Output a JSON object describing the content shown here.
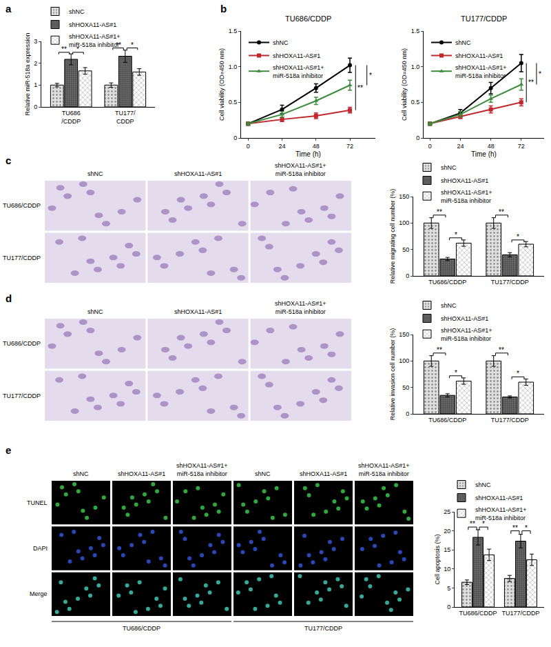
{
  "panel_labels": [
    "a",
    "b",
    "c",
    "d",
    "e"
  ],
  "chart_data": [
    {
      "type": "bar",
      "ylabel": "Relative miR-518a expression",
      "categories": [
        "TU686\n/CDDP",
        "TU177/\nCDDP"
      ],
      "series": [
        {
          "name": "shNC",
          "color": "#e0e0e0",
          "values": [
            1.0,
            1.0
          ],
          "errors": [
            0.08,
            0.1
          ]
        },
        {
          "name": "shHOXA11-AS#1",
          "color": "#6e6e6e",
          "values": [
            2.18,
            2.32
          ],
          "errors": [
            0.25,
            0.28
          ]
        },
        {
          "name": "shHOXA11-AS#1+\nmiR-518a inhibitor",
          "color": "#ffffff",
          "values": [
            1.65,
            1.6
          ],
          "errors": [
            0.15,
            0.15
          ]
        }
      ],
      "ylim": [
        0,
        3
      ],
      "yticks": [
        0,
        1,
        2,
        3
      ],
      "grid": false,
      "legend": "upper left",
      "significance": [
        {
          "group": 0,
          "from": 0,
          "to": 1,
          "y": 2.5,
          "label": "**"
        },
        {
          "group": 0,
          "from": 1,
          "to": 2,
          "y": 2.5,
          "label": "*"
        },
        {
          "group": 1,
          "from": 0,
          "to": 1,
          "y": 2.7,
          "label": "**"
        },
        {
          "group": 1,
          "from": 1,
          "to": 2,
          "y": 2.7,
          "label": "*"
        }
      ]
    },
    {
      "type": "line",
      "title": "TU686/CDDP",
      "xlabel": "Time (h)",
      "ylabel": "Cell viability (OD=450 nm)",
      "x": [
        0,
        24,
        48,
        72
      ],
      "series": [
        {
          "name": "shNC",
          "color": "#000000",
          "marker": "circle",
          "values": [
            0.2,
            0.4,
            0.7,
            1.02
          ],
          "errors": [
            0.02,
            0.06,
            0.06,
            0.1
          ]
        },
        {
          "name": "shHOXA11-AS#1",
          "color": "#c0282d",
          "marker": "square",
          "values": [
            0.2,
            0.26,
            0.31,
            0.39
          ],
          "errors": [
            0.02,
            0.03,
            0.04,
            0.04
          ]
        },
        {
          "name": "shHOXA11-AS#1+\nmiR-518a inhibitor",
          "color": "#3d8b3d",
          "marker": "triangle-up",
          "values": [
            0.2,
            0.33,
            0.52,
            0.74
          ],
          "errors": [
            0.02,
            0.04,
            0.05,
            0.07
          ]
        }
      ],
      "xlim": [
        -5,
        90
      ],
      "xticks": [
        0,
        24,
        48,
        72
      ],
      "ylim": [
        0,
        1.5
      ],
      "yticks": [
        0,
        0.5,
        {
          "value": 1,
          "label": "1.0"
        },
        1.5
      ],
      "grid": false,
      "legend": "upper left",
      "significance": [
        {
          "from": 0,
          "to": 1,
          "x": 76,
          "label": "**"
        },
        {
          "from": 0,
          "to": 2,
          "x": 84,
          "label": "*"
        }
      ]
    },
    {
      "type": "line",
      "title": "TU177/CDDP",
      "xlabel": "Time (h)",
      "ylabel": "Cell viability (OD=450 nm)",
      "x": [
        0,
        24,
        48,
        72
      ],
      "series": [
        {
          "name": "shNC",
          "color": "#000000",
          "marker": "circle",
          "values": [
            0.2,
            0.35,
            0.7,
            1.05
          ],
          "errors": [
            0.02,
            0.05,
            0.08,
            0.12
          ]
        },
        {
          "name": "shHOXA11-AS#1",
          "color": "#c0282d",
          "marker": "square",
          "values": [
            0.2,
            0.3,
            0.4,
            0.5
          ],
          "errors": [
            0.02,
            0.03,
            0.05,
            0.05
          ]
        },
        {
          "name": "shHOXA11-AS#1+\nmiR-518a inhibitor",
          "color": "#3d8b3d",
          "marker": "triangle-up",
          "values": [
            0.2,
            0.33,
            0.55,
            0.75
          ],
          "errors": [
            0.02,
            0.04,
            0.05,
            0.08
          ]
        }
      ],
      "xlim": [
        -5,
        90
      ],
      "xticks": [
        0,
        24,
        48,
        72
      ],
      "ylim": [
        0,
        1.5
      ],
      "yticks": [
        0,
        0.5,
        {
          "value": 1,
          "label": "1.0"
        },
        1.5
      ],
      "grid": false,
      "legend": "upper left",
      "significance": [
        {
          "from": 0,
          "to": 1,
          "x": 76,
          "label": "**"
        },
        {
          "from": 0,
          "to": 2,
          "x": 84,
          "label": "*"
        }
      ]
    },
    {
      "type": "bar",
      "ylabel": "Relative migrating cell number (%)",
      "categories": [
        "TU686/CDDP",
        "TU177/CDDP"
      ],
      "series": [
        {
          "name": "shNC",
          "color": "#e0e0e0",
          "values": [
            100,
            100
          ],
          "errors": [
            10,
            10
          ]
        },
        {
          "name": "shHOXA11-AS#1",
          "color": "#6e6e6e",
          "values": [
            32,
            40
          ],
          "errors": [
            3,
            4
          ]
        },
        {
          "name": "shHOXA11-AS#1+\nmiR-518a inhibitor",
          "color": "#ffffff",
          "values": [
            62,
            60
          ],
          "errors": [
            6,
            5
          ]
        }
      ],
      "ylim": [
        0,
        150
      ],
      "yticks": [
        0,
        50,
        100,
        150
      ],
      "grid": false,
      "legend": "upper left",
      "significance": [
        {
          "group": 0,
          "from": 0,
          "to": 1,
          "y": 115,
          "label": "**"
        },
        {
          "group": 0,
          "from": 1,
          "to": 2,
          "y": 72,
          "label": "*"
        },
        {
          "group": 1,
          "from": 0,
          "to": 1,
          "y": 115,
          "label": "**"
        },
        {
          "group": 1,
          "from": 1,
          "to": 2,
          "y": 68,
          "label": "*"
        }
      ]
    },
    {
      "type": "bar",
      "ylabel": "Relative invasion cell number (%)",
      "categories": [
        "TU686/CDDP",
        "TU177/CDDP"
      ],
      "series": [
        {
          "name": "shNC",
          "color": "#e0e0e0",
          "values": [
            100,
            100
          ],
          "errors": [
            10,
            10
          ]
        },
        {
          "name": "shHOXA11-AS#1",
          "color": "#6e6e6e",
          "values": [
            35,
            32
          ],
          "errors": [
            3,
            2
          ]
        },
        {
          "name": "shHOXA11-AS#1+\nmiR-518a inhibitor",
          "color": "#ffffff",
          "values": [
            62,
            60
          ],
          "errors": [
            6,
            6
          ]
        }
      ],
      "ylim": [
        0,
        150
      ],
      "yticks": [
        0,
        50,
        100,
        150
      ],
      "grid": false,
      "legend": "upper left",
      "significance": [
        {
          "group": 0,
          "from": 0,
          "to": 1,
          "y": 115,
          "label": "**"
        },
        {
          "group": 0,
          "from": 1,
          "to": 2,
          "y": 72,
          "label": "*"
        },
        {
          "group": 1,
          "from": 0,
          "to": 1,
          "y": 115,
          "label": "**"
        },
        {
          "group": 1,
          "from": 1,
          "to": 2,
          "y": 70,
          "label": "*"
        }
      ]
    },
    {
      "type": "bar",
      "ylabel": "Cell apoptosis (%)",
      "categories": [
        "TU686/CDDP",
        "TU177/CDDP"
      ],
      "series": [
        {
          "name": "shNC",
          "color": "#e0e0e0",
          "values": [
            6.5,
            7.5
          ],
          "errors": [
            0.6,
            0.8
          ]
        },
        {
          "name": "shHOXA11-AS#1",
          "color": "#6e6e6e",
          "values": [
            18.3,
            17.3
          ],
          "errors": [
            2,
            1.8
          ]
        },
        {
          "name": "shHOXA11-AS#1+\nmiR-518a inhibitor",
          "color": "#ffffff",
          "values": [
            13.7,
            12.4
          ],
          "errors": [
            1.5,
            1.5
          ]
        }
      ],
      "ylim": [
        0,
        25
      ],
      "yticks": [
        0,
        5,
        10,
        15,
        20,
        25
      ],
      "grid": false,
      "legend": "upper left",
      "significance": [
        {
          "group": 0,
          "from": 0,
          "to": 1,
          "y": 21,
          "label": "**"
        },
        {
          "group": 0,
          "from": 1,
          "to": 2,
          "y": 21,
          "label": "*"
        },
        {
          "group": 1,
          "from": 0,
          "to": 1,
          "y": 20,
          "label": "**"
        },
        {
          "group": 1,
          "from": 1,
          "to": 2,
          "y": 20,
          "label": "*"
        }
      ]
    }
  ],
  "image_panels": [
    {
      "columns": [
        "shNC",
        "shHOXA11-AS#1",
        "shHOXA11-AS#1+\nmiR-518a inhibitor"
      ],
      "rows": [
        "TU686/CDDP",
        "TU177/CDDP"
      ],
      "color": "#e4dced"
    },
    {
      "columns": [
        "shNC",
        "shHOXA11-AS#1",
        "shHOXA11-AS#1+\nmiR-518a inhibitor"
      ],
      "rows": [
        "TU686/CDDP",
        "TU177/CDDP"
      ],
      "color": "#e4dced"
    },
    {
      "columns": [
        "shNC",
        "shHOXA11-AS#1",
        "shHOXA11-AS#1+\nmiR-518a inhibitor"
      ],
      "rows": [
        "TUNEL",
        "DAPI",
        "Merge"
      ],
      "groups": [
        "TU686/CDDP",
        "TU177/CDDP"
      ],
      "color": "#000000"
    }
  ]
}
